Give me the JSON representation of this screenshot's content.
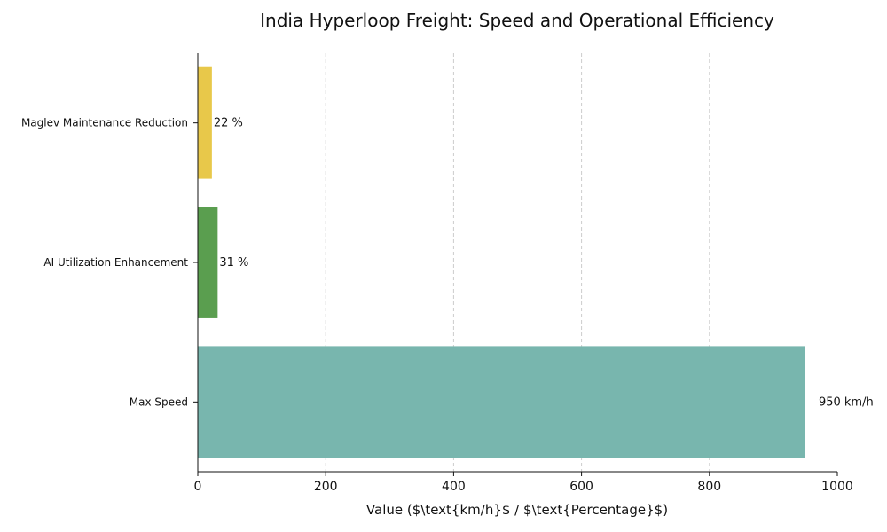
{
  "chart_data": {
    "type": "bar",
    "orientation": "horizontal",
    "title": "India Hyperloop Freight: Speed and Operational Efficiency",
    "xlabel": "Value ($\\text{km/h}$ / $\\text{Percentage}$)",
    "ylabel": "",
    "xlim": [
      0,
      1000
    ],
    "xticks": [
      0,
      200,
      400,
      600,
      800,
      1000
    ],
    "grid": "vertical-dashed",
    "categories": [
      "Max Speed",
      "AI Utilization Enhancement",
      "Maglev Maintenance Reduction"
    ],
    "values": [
      950,
      31,
      22
    ],
    "data_labels": [
      "950 km/h",
      "31 %",
      "22 %"
    ],
    "colors": [
      "#78b6ae",
      "#5a9e4f",
      "#e8c84a"
    ]
  }
}
